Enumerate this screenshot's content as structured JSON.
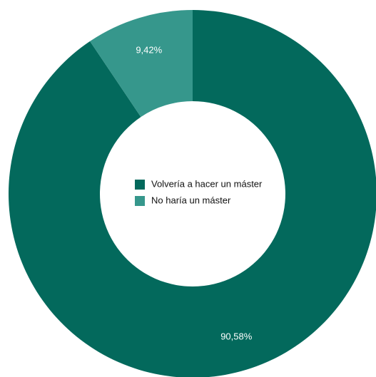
{
  "chart_data": {
    "type": "pie",
    "variant": "donut",
    "legend_position": "center",
    "slices": [
      {
        "name": "Volvería a hacer un máster",
        "value": 90.58,
        "label": "90,58%",
        "color": "#03695c"
      },
      {
        "name": "No haría un máster",
        "value": 9.42,
        "label": "9,42%",
        "color": "#36978c"
      }
    ]
  }
}
